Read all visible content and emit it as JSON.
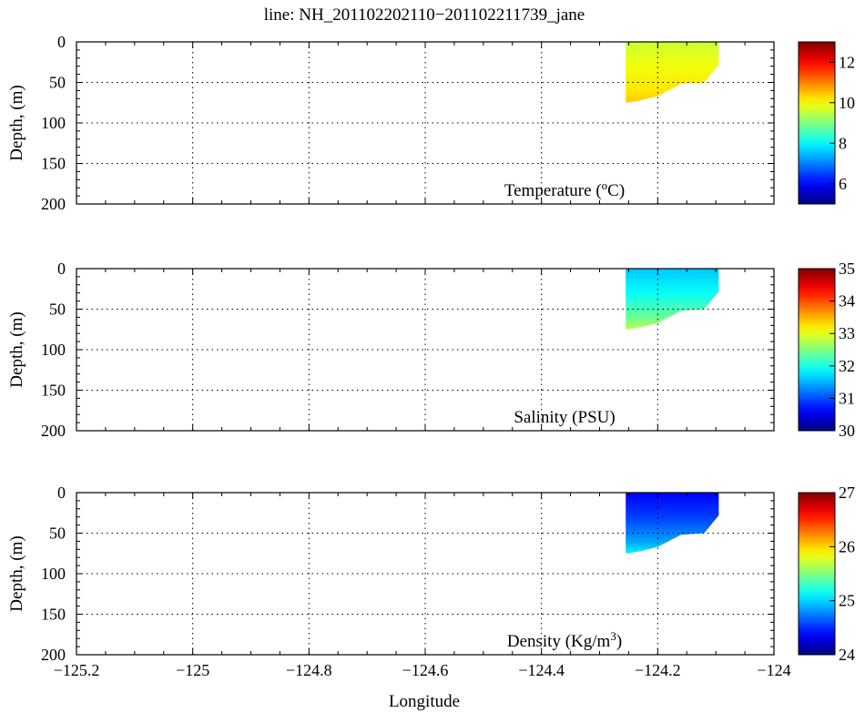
{
  "figure": {
    "title": "line: NH_201102202110−201102211739_jane",
    "xlabel": "Longitude"
  },
  "chart_data": [
    {
      "type": "heatmap",
      "panel_label_text": "Temperature (",
      "panel_label_unit": "C)",
      "panel_label_sup": "o",
      "ylabel": "Depth, (m)",
      "xlim": [
        -125.2,
        -124.0
      ],
      "ylim": [
        200,
        0
      ],
      "x_ticks": [
        -125.2,
        -125,
        -124.8,
        -124.6,
        -124.4,
        -124.2,
        -124
      ],
      "y_ticks": [
        0,
        50,
        100,
        150,
        200
      ],
      "grid": true,
      "colorbar": {
        "min": 5,
        "max": 13,
        "ticks": [
          6,
          8,
          10,
          12
        ],
        "colormap": "jet"
      },
      "data_region": {
        "lon_range": [
          -124.255,
          -124.095
        ],
        "outline": [
          {
            "lon": -124.255,
            "depth": 0
          },
          {
            "lon": -124.095,
            "depth": 0
          },
          {
            "lon": -124.095,
            "depth": 28
          },
          {
            "lon": -124.12,
            "depth": 50
          },
          {
            "lon": -124.16,
            "depth": 52
          },
          {
            "lon": -124.2,
            "depth": 67
          },
          {
            "lon": -124.235,
            "depth": 73
          },
          {
            "lon": -124.255,
            "depth": 75
          }
        ],
        "field": [
          {
            "depth": 0,
            "value": 9.6
          },
          {
            "depth": 30,
            "value": 9.9
          },
          {
            "depth": 60,
            "value": 10.2
          },
          {
            "depth": 75,
            "value": 10.4
          }
        ]
      }
    },
    {
      "type": "heatmap",
      "panel_label_text": "Salinity (PSU)",
      "ylabel": "Depth, (m)",
      "xlim": [
        -125.2,
        -124.0
      ],
      "ylim": [
        200,
        0
      ],
      "x_ticks": [
        -125.2,
        -125,
        -124.8,
        -124.6,
        -124.4,
        -124.2,
        -124
      ],
      "y_ticks": [
        0,
        50,
        100,
        150,
        200
      ],
      "grid": true,
      "colorbar": {
        "min": 30,
        "max": 35,
        "ticks": [
          30,
          31,
          32,
          33,
          34,
          35
        ],
        "colormap": "jet"
      },
      "data_region": {
        "lon_range": [
          -124.255,
          -124.095
        ],
        "outline": [
          {
            "lon": -124.255,
            "depth": 0
          },
          {
            "lon": -124.095,
            "depth": 0
          },
          {
            "lon": -124.095,
            "depth": 28
          },
          {
            "lon": -124.12,
            "depth": 50
          },
          {
            "lon": -124.16,
            "depth": 52
          },
          {
            "lon": -124.2,
            "depth": 67
          },
          {
            "lon": -124.235,
            "depth": 73
          },
          {
            "lon": -124.255,
            "depth": 75
          }
        ],
        "field": [
          {
            "depth": 0,
            "value": 31.6
          },
          {
            "depth": 30,
            "value": 31.9
          },
          {
            "depth": 60,
            "value": 32.4
          },
          {
            "depth": 75,
            "value": 32.8
          }
        ]
      }
    },
    {
      "type": "heatmap",
      "panel_label_text": "Density (Kg/m",
      "panel_label_sup": "3",
      "panel_label_unit": ")",
      "ylabel": "Depth, (m)",
      "xlim": [
        -125.2,
        -124.0
      ],
      "ylim": [
        200,
        0
      ],
      "x_ticks": [
        -125.2,
        -125,
        -124.8,
        -124.6,
        -124.4,
        -124.2,
        -124
      ],
      "y_ticks": [
        0,
        50,
        100,
        150,
        200
      ],
      "grid": true,
      "colorbar": {
        "min": 24,
        "max": 27,
        "ticks": [
          24,
          25,
          26,
          27
        ],
        "colormap": "jet"
      },
      "data_region": {
        "lon_range": [
          -124.255,
          -124.095
        ],
        "outline": [
          {
            "lon": -124.255,
            "depth": 0
          },
          {
            "lon": -124.095,
            "depth": 0
          },
          {
            "lon": -124.095,
            "depth": 28
          },
          {
            "lon": -124.12,
            "depth": 50
          },
          {
            "lon": -124.16,
            "depth": 52
          },
          {
            "lon": -124.2,
            "depth": 67
          },
          {
            "lon": -124.235,
            "depth": 73
          },
          {
            "lon": -124.255,
            "depth": 75
          }
        ],
        "field": [
          {
            "depth": 0,
            "value": 24.35
          },
          {
            "depth": 30,
            "value": 24.55
          },
          {
            "depth": 60,
            "value": 24.85
          },
          {
            "depth": 75,
            "value": 25.1
          }
        ]
      }
    }
  ]
}
